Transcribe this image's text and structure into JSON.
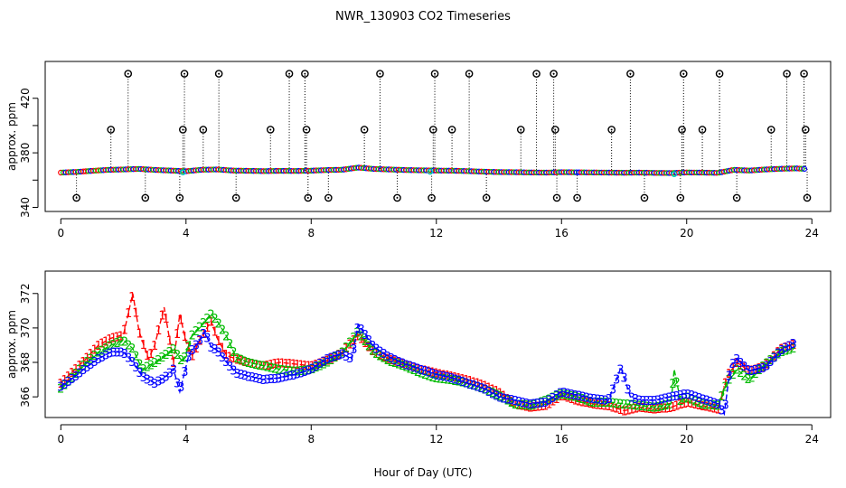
{
  "title": "NWR_130903  CO2 Timeseries",
  "colors": {
    "s1": "#ff0000",
    "s2": "#00bb00",
    "s3": "#0000ff",
    "baseline_glitch": "#00cccc",
    "spike": "#000000"
  },
  "chart_data": [
    {
      "type": "scatter",
      "name": "raw",
      "ylabel": "approx. ppm",
      "xlabel": "",
      "xlim": [
        -0.5,
        24.6
      ],
      "ylim": [
        337,
        447
      ],
      "xticks": [
        0,
        4,
        8,
        12,
        16,
        20,
        24
      ],
      "yticks": [
        340,
        380,
        420
      ],
      "yticks_minor": [
        360,
        400
      ],
      "baseline": [
        [
          0,
          365.5
        ],
        [
          0.5,
          366.0
        ],
        [
          1.0,
          366.8
        ],
        [
          1.5,
          367.5
        ],
        [
          2.0,
          367.8
        ],
        [
          2.5,
          368.2
        ],
        [
          3.0,
          367.5
        ],
        [
          3.5,
          367.0
        ],
        [
          4.0,
          366.5
        ],
        [
          4.5,
          367.6
        ],
        [
          5.0,
          367.8
        ],
        [
          5.5,
          367.0
        ],
        [
          6.0,
          366.8
        ],
        [
          6.5,
          366.6
        ],
        [
          7.0,
          366.8
        ],
        [
          7.5,
          366.7
        ],
        [
          8.0,
          366.9
        ],
        [
          8.5,
          367.4
        ],
        [
          9.0,
          367.6
        ],
        [
          9.5,
          369.2
        ],
        [
          10.0,
          368.2
        ],
        [
          10.5,
          367.8
        ],
        [
          11.0,
          367.4
        ],
        [
          11.5,
          367.2
        ],
        [
          12.0,
          367.0
        ],
        [
          12.5,
          366.9
        ],
        [
          13.0,
          366.6
        ],
        [
          13.5,
          366.2
        ],
        [
          14.0,
          365.9
        ],
        [
          14.5,
          365.8
        ],
        [
          15.0,
          365.6
        ],
        [
          15.5,
          365.5
        ],
        [
          16.0,
          365.8
        ],
        [
          16.5,
          365.7
        ],
        [
          17.0,
          365.6
        ],
        [
          17.5,
          365.5
        ],
        [
          18.0,
          365.4
        ],
        [
          18.5,
          365.5
        ],
        [
          19.0,
          365.3
        ],
        [
          19.5,
          365.2
        ],
        [
          20.0,
          365.6
        ],
        [
          20.5,
          365.5
        ],
        [
          21.0,
          365.3
        ],
        [
          21.5,
          367.5
        ],
        [
          22.0,
          367.0
        ],
        [
          22.5,
          367.8
        ],
        [
          23.0,
          368.3
        ],
        [
          23.5,
          368.6
        ],
        [
          23.8,
          368.2
        ]
      ],
      "spikes": [
        {
          "x": 0.5,
          "y": 347
        },
        {
          "x": 1.6,
          "y": 397
        },
        {
          "x": 2.15,
          "y": 438
        },
        {
          "x": 2.7,
          "y": 347
        },
        {
          "x": 3.8,
          "y": 347
        },
        {
          "x": 3.9,
          "y": 397
        },
        {
          "x": 3.95,
          "y": 438
        },
        {
          "x": 4.55,
          "y": 397
        },
        {
          "x": 5.05,
          "y": 438
        },
        {
          "x": 5.6,
          "y": 347
        },
        {
          "x": 6.7,
          "y": 397
        },
        {
          "x": 7.3,
          "y": 438
        },
        {
          "x": 7.8,
          "y": 438
        },
        {
          "x": 7.85,
          "y": 397
        },
        {
          "x": 7.9,
          "y": 347
        },
        {
          "x": 8.55,
          "y": 347
        },
        {
          "x": 9.7,
          "y": 397
        },
        {
          "x": 10.2,
          "y": 438
        },
        {
          "x": 10.75,
          "y": 347
        },
        {
          "x": 11.85,
          "y": 347
        },
        {
          "x": 11.9,
          "y": 397
        },
        {
          "x": 11.95,
          "y": 438
        },
        {
          "x": 12.5,
          "y": 397
        },
        {
          "x": 13.05,
          "y": 438
        },
        {
          "x": 13.6,
          "y": 347
        },
        {
          "x": 14.7,
          "y": 397
        },
        {
          "x": 15.2,
          "y": 438
        },
        {
          "x": 15.75,
          "y": 438
        },
        {
          "x": 15.8,
          "y": 397
        },
        {
          "x": 15.85,
          "y": 347
        },
        {
          "x": 16.5,
          "y": 347
        },
        {
          "x": 17.6,
          "y": 397
        },
        {
          "x": 18.2,
          "y": 438
        },
        {
          "x": 18.65,
          "y": 347
        },
        {
          "x": 19.8,
          "y": 347
        },
        {
          "x": 19.85,
          "y": 397
        },
        {
          "x": 19.9,
          "y": 438
        },
        {
          "x": 20.5,
          "y": 397
        },
        {
          "x": 21.05,
          "y": 438
        },
        {
          "x": 21.6,
          "y": 347
        },
        {
          "x": 22.7,
          "y": 397
        },
        {
          "x": 23.2,
          "y": 438
        },
        {
          "x": 23.75,
          "y": 438
        },
        {
          "x": 23.8,
          "y": 397
        },
        {
          "x": 23.85,
          "y": 347
        }
      ]
    },
    {
      "type": "line",
      "name": "smoothed",
      "ylabel": "approx. ppm",
      "xlabel": "Hour of Day (UTC)",
      "xlim": [
        -0.5,
        24.6
      ],
      "ylim": [
        364.8,
        373.3
      ],
      "xticks": [
        0,
        4,
        8,
        12,
        16,
        20,
        24
      ],
      "yticks": [
        366,
        368,
        370,
        372
      ],
      "series": [
        {
          "name": "1",
          "x": [
            0,
            0.4,
            0.8,
            1.2,
            1.6,
            2.0,
            2.3,
            2.5,
            2.8,
            3.0,
            3.3,
            3.6,
            3.8,
            4.0,
            4.2,
            4.5,
            4.8,
            5.0,
            5.3,
            5.6,
            6.0,
            6.5,
            7.0,
            7.5,
            8.0,
            8.5,
            9.0,
            9.5,
            10.0,
            10.5,
            11.0,
            11.5,
            12.0,
            12.5,
            13.0,
            13.5,
            14.0,
            14.5,
            15.0,
            15.5,
            16.0,
            16.5,
            17.0,
            17.5,
            18.0,
            18.5,
            19.0,
            19.5,
            20.0,
            20.5,
            21.0,
            21.3,
            21.6,
            22.0,
            22.5,
            23.0,
            23.5
          ],
          "y": [
            366.8,
            367.5,
            368.2,
            369.0,
            369.4,
            369.6,
            372.0,
            369.8,
            368.2,
            369.0,
            371.2,
            368.0,
            370.8,
            369.2,
            368.4,
            369.5,
            370.4,
            369.4,
            368.4,
            368.2,
            368.0,
            367.8,
            368.0,
            367.9,
            367.8,
            368.1,
            368.6,
            369.6,
            368.6,
            368.2,
            367.9,
            367.6,
            367.4,
            367.2,
            367.0,
            366.7,
            366.3,
            365.6,
            365.4,
            365.5,
            366.1,
            365.8,
            365.6,
            365.5,
            365.2,
            365.4,
            365.3,
            365.4,
            365.7,
            365.5,
            365.3,
            367.2,
            368.0,
            367.5,
            367.8,
            368.8,
            369.1
          ]
        },
        {
          "name": "2",
          "x": [
            0,
            0.4,
            0.8,
            1.2,
            1.6,
            2.0,
            2.3,
            2.6,
            3.0,
            3.3,
            3.6,
            3.9,
            4.2,
            4.5,
            4.8,
            5.0,
            5.3,
            5.6,
            6.0,
            6.5,
            7.0,
            7.5,
            8.0,
            8.5,
            9.0,
            9.5,
            10.0,
            10.5,
            11.0,
            11.5,
            12.0,
            12.5,
            13.0,
            13.5,
            14.0,
            14.5,
            15.0,
            15.5,
            16.0,
            16.5,
            17.0,
            17.5,
            18.0,
            18.5,
            19.0,
            19.5,
            19.6,
            19.8,
            20.0,
            20.5,
            21.0,
            21.3,
            21.6,
            22.0,
            22.5,
            23.0,
            23.5
          ],
          "y": [
            366.5,
            367.2,
            368.0,
            368.6,
            369.0,
            369.3,
            368.8,
            367.6,
            368.0,
            368.4,
            368.8,
            368.0,
            369.6,
            370.2,
            370.8,
            370.4,
            369.5,
            368.3,
            368.0,
            367.8,
            367.6,
            367.5,
            367.6,
            368.0,
            368.6,
            369.8,
            368.6,
            368.1,
            367.8,
            367.4,
            367.1,
            367.0,
            366.8,
            366.5,
            366.1,
            365.6,
            365.5,
            365.8,
            366.2,
            366.0,
            365.7,
            365.7,
            365.6,
            365.5,
            365.4,
            365.6,
            367.6,
            365.8,
            366.0,
            365.6,
            365.5,
            366.9,
            367.6,
            367.0,
            367.9,
            368.6,
            368.9
          ]
        },
        {
          "name": "3",
          "x": [
            0,
            0.4,
            0.8,
            1.2,
            1.6,
            2.0,
            2.3,
            2.6,
            3.0,
            3.3,
            3.6,
            3.8,
            4.1,
            4.4,
            4.6,
            4.8,
            5.0,
            5.3,
            5.6,
            6.0,
            6.5,
            7.0,
            7.5,
            8.0,
            8.5,
            9.0,
            9.3,
            9.5,
            10.0,
            10.5,
            11.0,
            11.5,
            12.0,
            12.5,
            13.0,
            13.5,
            14.0,
            14.5,
            15.0,
            15.5,
            16.0,
            16.5,
            17.0,
            17.5,
            17.9,
            18.2,
            18.5,
            19.0,
            19.5,
            20.0,
            20.5,
            21.0,
            21.2,
            21.4,
            21.6,
            22.0,
            22.5,
            23.0,
            23.5
          ],
          "y": [
            366.6,
            367.1,
            367.7,
            368.2,
            368.6,
            368.6,
            368.0,
            367.2,
            366.8,
            367.1,
            367.6,
            366.3,
            368.5,
            369.2,
            369.8,
            368.9,
            368.7,
            368.0,
            367.4,
            367.2,
            367.0,
            367.1,
            367.3,
            367.6,
            368.2,
            368.5,
            368.2,
            370.2,
            368.9,
            368.3,
            367.9,
            367.6,
            367.3,
            367.1,
            366.8,
            366.5,
            366.0,
            365.8,
            365.6,
            365.7,
            366.3,
            366.1,
            365.9,
            365.8,
            367.7,
            366.0,
            365.8,
            365.8,
            366.0,
            366.2,
            365.9,
            365.6,
            365.0,
            367.8,
            368.2,
            367.5,
            367.7,
            368.7,
            369.2
          ]
        }
      ]
    }
  ]
}
